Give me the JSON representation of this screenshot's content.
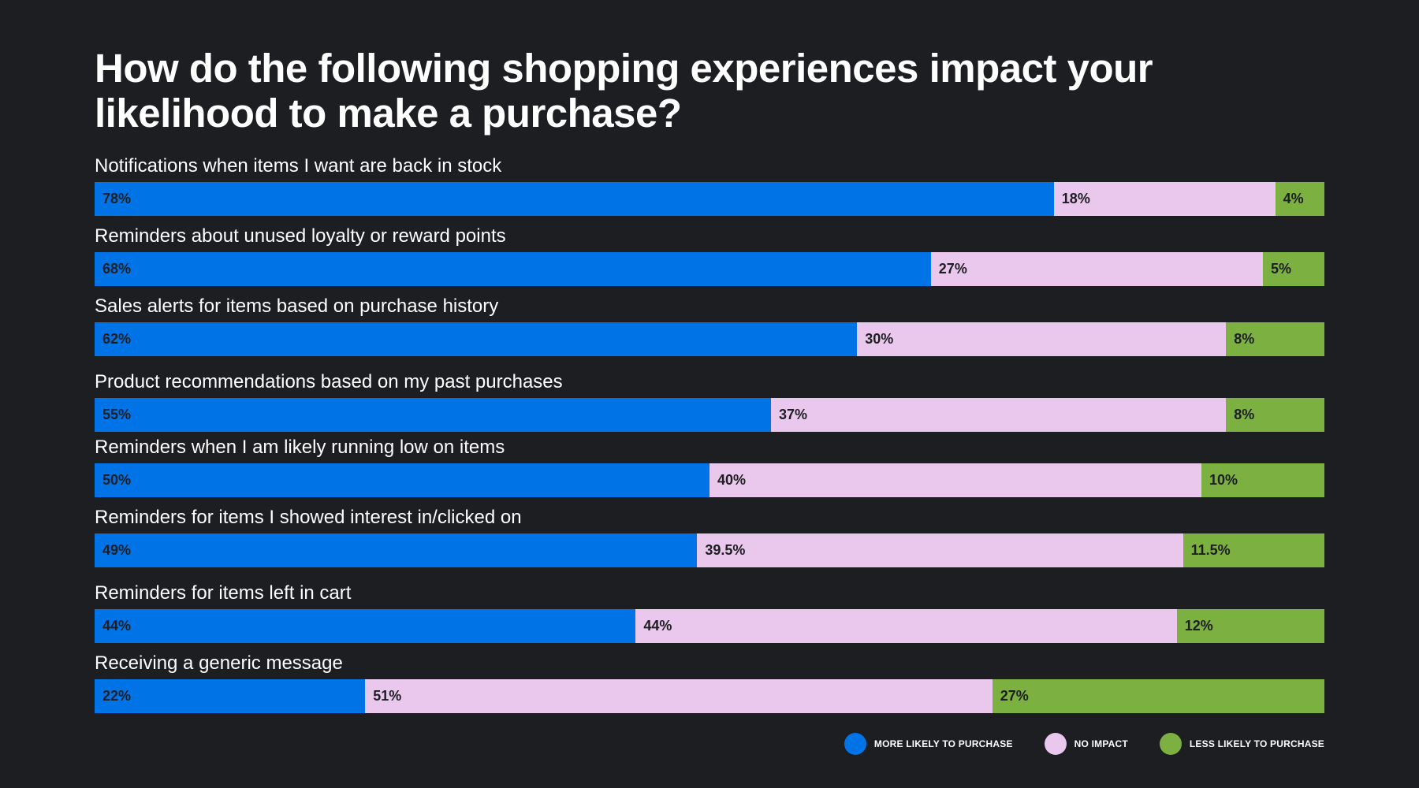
{
  "chart_data": {
    "type": "bar",
    "stacked": true,
    "orientation": "horizontal",
    "title": "How do the following shopping experiences impact your likelihood to make a purchase?",
    "categories": [
      "Notifications when items I want are back in stock",
      "Reminders about unused loyalty or reward points",
      "Sales alerts for items based on purchase history",
      "Product recommendations based on my past purchases",
      "Reminders when I am likely running low on items",
      "Reminders for items I showed interest in/clicked on",
      "Reminders for items left in cart",
      "Receiving a generic message"
    ],
    "series": [
      {
        "name": "MORE LIKELY TO PURCHASE",
        "color": "#0073e6",
        "values": [
          78,
          68,
          62,
          55,
          50,
          49,
          44,
          22
        ]
      },
      {
        "name": "NO IMPACT",
        "color": "#eac7ec",
        "values": [
          18,
          27,
          30,
          37,
          40,
          39.5,
          44,
          51
        ]
      },
      {
        "name": "LESS LIKELY TO PURCHASE",
        "color": "#7cb041",
        "values": [
          4,
          5,
          8,
          8,
          10,
          11.5,
          12,
          27
        ]
      }
    ],
    "value_suffix": "%",
    "legend_position": "bottom-right",
    "xlim": [
      0,
      100
    ]
  }
}
